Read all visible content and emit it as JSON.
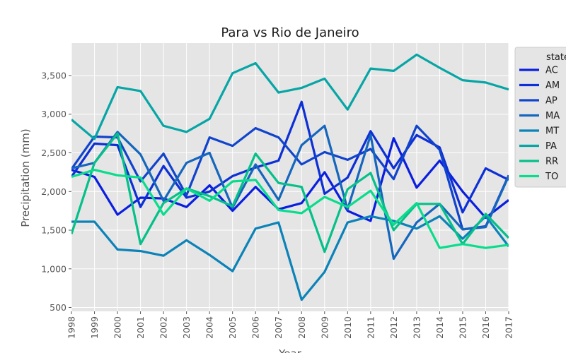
{
  "chart_data": {
    "type": "line",
    "title": "Para vs Rio de Janeiro",
    "xlabel": "Year",
    "ylabel": "Precipitation (mm)",
    "x": [
      1998,
      1999,
      2000,
      2001,
      2002,
      2003,
      2004,
      2005,
      2006,
      2007,
      2008,
      2009,
      2010,
      2011,
      2012,
      2013,
      2014,
      2015,
      2016,
      2017
    ],
    "xlim": [
      1998,
      2017
    ],
    "ylim": [
      450,
      3920
    ],
    "yticks": [
      500,
      1000,
      1500,
      2000,
      2500,
      3000,
      3500
    ],
    "ytick_labels": [
      "500",
      "1,000",
      "1,500",
      "2,000",
      "2,500",
      "3,000",
      "3,500"
    ],
    "grid": true,
    "legend": {
      "title": "state",
      "placement": "right"
    },
    "series": [
      {
        "name": "AC",
        "color": "#0a1ee0",
        "values": [
          2280,
          2190,
          1700,
          1920,
          1910,
          1800,
          2080,
          1750,
          2060,
          1770,
          1850,
          2250,
          1750,
          1620,
          2690,
          2050,
          2400,
          2000,
          1660,
          1890
        ]
      },
      {
        "name": "AM",
        "color": "#0d2fd6",
        "values": [
          2190,
          2620,
          2600,
          1800,
          2330,
          1920,
          2000,
          2200,
          2310,
          2400,
          3160,
          1970,
          2180,
          2780,
          2300,
          2730,
          2570,
          1730,
          2300,
          2150
        ]
      },
      {
        "name": "AP",
        "color": "#1144cc",
        "values": [
          2290,
          2710,
          2700,
          2130,
          2490,
          1950,
          2700,
          2590,
          2820,
          2700,
          2350,
          2510,
          2410,
          2550,
          2160,
          2850,
          2540,
          1510,
          1550,
          2210
        ]
      },
      {
        "name": "MA",
        "color": "#1566bd",
        "values": [
          2300,
          2370,
          2770,
          2480,
          1880,
          2370,
          2500,
          1790,
          2350,
          1890,
          2600,
          2850,
          1770,
          2730,
          1130,
          1600,
          1840,
          1510,
          1540,
          2200
        ]
      },
      {
        "name": "MT",
        "color": "#0b82b8",
        "values": [
          1610,
          1610,
          1250,
          1230,
          1170,
          1370,
          1180,
          970,
          1520,
          1600,
          600,
          960,
          1600,
          1680,
          1620,
          1520,
          1680,
          1390,
          1680,
          1290
        ]
      },
      {
        "name": "PA",
        "color": "#07a5a5",
        "values": [
          2930,
          2680,
          3350,
          3300,
          2850,
          2770,
          2940,
          3530,
          3660,
          3280,
          3340,
          3460,
          3060,
          3590,
          3560,
          3770,
          3600,
          3440,
          3410,
          3320
        ]
      },
      {
        "name": "RR",
        "color": "#05c089",
        "values": [
          1450,
          2370,
          2750,
          1320,
          1850,
          2040,
          1940,
          1810,
          2490,
          2110,
          2060,
          1220,
          2030,
          2240,
          1500,
          1840,
          1840,
          1320,
          1710,
          1400
        ]
      },
      {
        "name": "TO",
        "color": "#08dd8c",
        "values": [
          2190,
          2280,
          2210,
          2180,
          1700,
          2040,
          1880,
          2130,
          2150,
          1760,
          1720,
          1930,
          1800,
          2010,
          1570,
          1850,
          1270,
          1320,
          1270,
          1310
        ]
      }
    ]
  }
}
